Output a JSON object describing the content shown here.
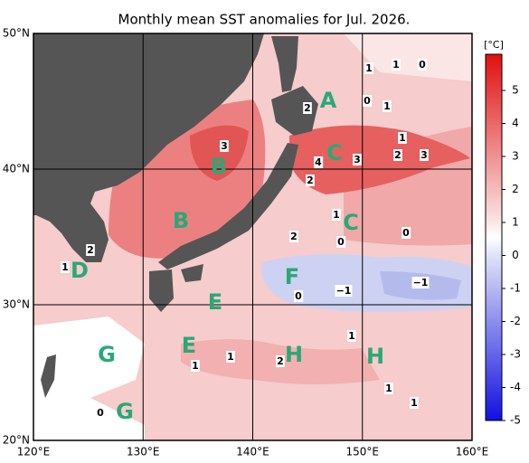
{
  "header": {
    "title": "Monthly mean SST anomalies for Jul. 2026."
  },
  "axes": {
    "lat_labels": [
      "50°N",
      "40°N",
      "30°N",
      "20°N"
    ],
    "lon_labels": [
      "120°E",
      "130°E",
      "140°E",
      "150°E",
      "160°E"
    ]
  },
  "colorbar": {
    "unit": "[°C]",
    "ticks": [
      5,
      4,
      3,
      2,
      1,
      0,
      -1,
      -2,
      -3,
      -4,
      -5
    ]
  },
  "regions": [
    "A",
    "B",
    "B",
    "C",
    "C",
    "D",
    "E",
    "E",
    "F",
    "G",
    "G",
    "H",
    "H"
  ],
  "contour_labels": [
    "1",
    "1",
    "0",
    "2",
    "0",
    "1",
    "3",
    "1",
    "4",
    "3",
    "2",
    "3",
    "2",
    "1",
    "2",
    "0",
    "0",
    "2",
    "1",
    "0",
    "−1",
    "−1",
    "1",
    "1",
    "1",
    "2",
    "1",
    "1",
    "0"
  ]
}
